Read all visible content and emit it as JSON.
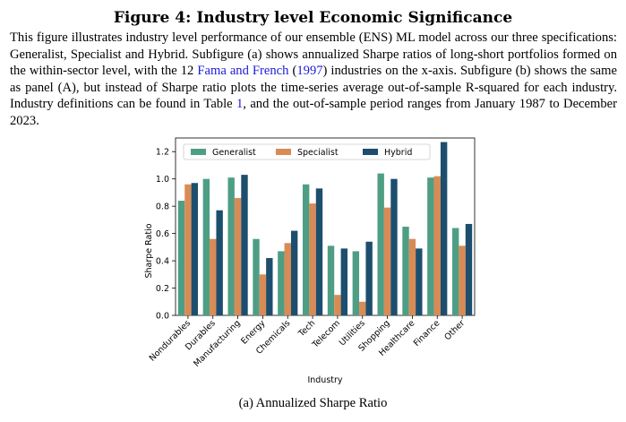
{
  "figure": {
    "title": "Figure 4: Industry level Economic Significance",
    "caption_parts": {
      "p1": "This figure illustrates industry level performance of our ensemble (ENS) ML model across our three specifications: Generalist, Specialist and Hybrid. Subfigure (a) shows annualized Sharpe ratios of long-short portfolios formed on the within-sector level, with the 12 ",
      "link1": "Fama and French",
      "p2": " (",
      "link2": "1997",
      "p3": ") industries on the x-axis. Subfigure (b) shows the same as panel (A), but instead of Sharpe ratio plots the time-series average out-of-sample R-squared for each industry. Industry definitions can be found in Table ",
      "link3": "1",
      "p4": ", and the out-of-sample period ranges from January 1987 to December 2023."
    },
    "subcaption": "(a) Annualized Sharpe Ratio"
  },
  "colors": {
    "Generalist": "#4e9e85",
    "Specialist": "#d98b55",
    "Hybrid": "#1d4e6e"
  },
  "chart_data": {
    "type": "bar",
    "title": "",
    "xlabel": "Industry",
    "ylabel": "Sharpe Ratio",
    "ylim": [
      0,
      1.3
    ],
    "yticks": [
      "0.0",
      "0.2",
      "0.4",
      "0.6",
      "0.8",
      "1.0",
      "1.2"
    ],
    "ytick_values": [
      0,
      0.2,
      0.4,
      0.6,
      0.8,
      1.0,
      1.2
    ],
    "legend_position": "top",
    "categories": [
      "Nondurables",
      "Durables",
      "Manufacturing",
      "Energy",
      "Chemicals",
      "Tech",
      "Telecom",
      "Utilities",
      "Shopping",
      "Healthcare",
      "Finance",
      "Other"
    ],
    "series": [
      {
        "name": "Generalist",
        "values": [
          0.84,
          1.0,
          1.01,
          0.56,
          0.47,
          0.96,
          0.51,
          0.47,
          1.04,
          0.65,
          1.01,
          0.64
        ]
      },
      {
        "name": "Specialist",
        "values": [
          0.96,
          0.56,
          0.86,
          0.3,
          0.53,
          0.82,
          0.15,
          0.1,
          0.79,
          0.56,
          1.02,
          0.51
        ]
      },
      {
        "name": "Hybrid",
        "values": [
          0.97,
          0.77,
          1.03,
          0.42,
          0.62,
          0.93,
          0.49,
          0.54,
          1.0,
          0.49,
          1.27,
          0.67
        ]
      }
    ]
  }
}
